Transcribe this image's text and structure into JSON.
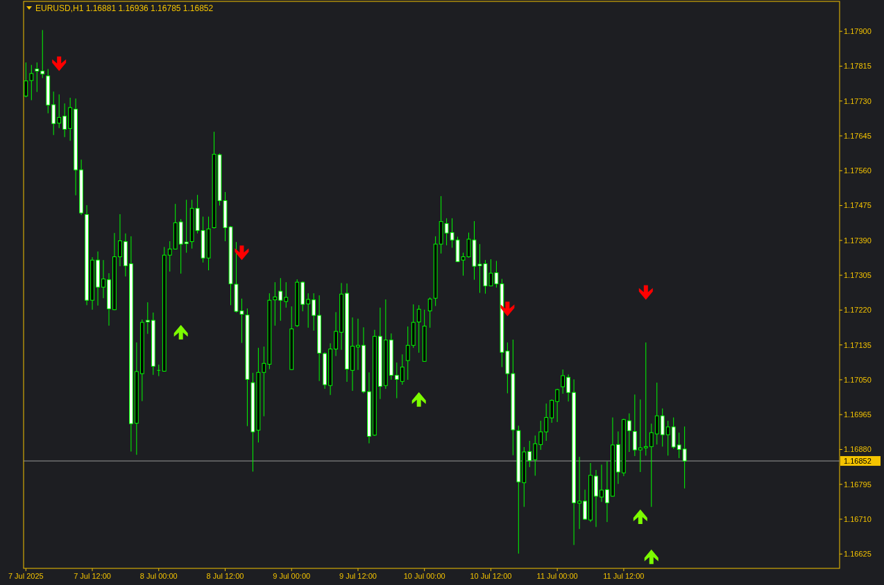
{
  "chart_data": {
    "type": "candlestick",
    "title": "EURUSD,H1 1.16881 1.16936 1.16785 1.16852",
    "x": [
      "2025-07-07T00:00",
      "2025-07-07T01:00",
      "2025-07-07T02:00",
      "2025-07-07T03:00",
      "2025-07-07T04:00",
      "2025-07-07T05:00",
      "2025-07-07T06:00",
      "2025-07-07T07:00",
      "2025-07-07T08:00",
      "2025-07-07T09:00",
      "2025-07-07T10:00",
      "2025-07-07T11:00",
      "2025-07-07T12:00",
      "2025-07-07T13:00",
      "2025-07-07T14:00",
      "2025-07-07T15:00",
      "2025-07-07T16:00",
      "2025-07-07T17:00",
      "2025-07-07T18:00",
      "2025-07-07T19:00",
      "2025-07-07T20:00",
      "2025-07-07T21:00",
      "2025-07-07T22:00",
      "2025-07-07T23:00",
      "2025-07-08T00:00",
      "2025-07-08T01:00",
      "2025-07-08T02:00",
      "2025-07-08T03:00",
      "2025-07-08T04:00",
      "2025-07-08T05:00",
      "2025-07-08T06:00",
      "2025-07-08T07:00",
      "2025-07-08T08:00",
      "2025-07-08T09:00",
      "2025-07-08T10:00",
      "2025-07-08T11:00",
      "2025-07-08T12:00",
      "2025-07-08T13:00",
      "2025-07-08T14:00",
      "2025-07-08T15:00",
      "2025-07-08T16:00",
      "2025-07-08T17:00",
      "2025-07-08T18:00",
      "2025-07-08T19:00",
      "2025-07-08T20:00",
      "2025-07-08T21:00",
      "2025-07-08T22:00",
      "2025-07-08T23:00",
      "2025-07-09T00:00",
      "2025-07-09T01:00",
      "2025-07-09T02:00",
      "2025-07-09T03:00",
      "2025-07-09T04:00",
      "2025-07-09T05:00",
      "2025-07-09T06:00",
      "2025-07-09T07:00",
      "2025-07-09T08:00",
      "2025-07-09T09:00",
      "2025-07-09T10:00",
      "2025-07-09T11:00",
      "2025-07-09T12:00",
      "2025-07-09T13:00",
      "2025-07-09T14:00",
      "2025-07-09T15:00",
      "2025-07-09T16:00",
      "2025-07-09T17:00",
      "2025-07-09T18:00",
      "2025-07-09T19:00",
      "2025-07-09T20:00",
      "2025-07-09T21:00",
      "2025-07-09T22:00",
      "2025-07-09T23:00",
      "2025-07-10T00:00",
      "2025-07-10T01:00",
      "2025-07-10T02:00",
      "2025-07-10T03:00",
      "2025-07-10T04:00",
      "2025-07-10T05:00",
      "2025-07-10T06:00",
      "2025-07-10T07:00",
      "2025-07-10T08:00",
      "2025-07-10T09:00",
      "2025-07-10T10:00",
      "2025-07-10T11:00",
      "2025-07-10T12:00",
      "2025-07-10T13:00",
      "2025-07-10T14:00",
      "2025-07-10T15:00",
      "2025-07-10T16:00",
      "2025-07-10T17:00",
      "2025-07-10T18:00",
      "2025-07-10T19:00",
      "2025-07-10T20:00",
      "2025-07-10T21:00",
      "2025-07-10T22:00",
      "2025-07-10T23:00",
      "2025-07-11T00:00",
      "2025-07-11T01:00",
      "2025-07-11T02:00",
      "2025-07-11T03:00",
      "2025-07-11T04:00",
      "2025-07-11T05:00",
      "2025-07-11T06:00",
      "2025-07-11T07:00",
      "2025-07-11T08:00",
      "2025-07-11T09:00",
      "2025-07-11T10:00",
      "2025-07-11T11:00",
      "2025-07-11T12:00",
      "2025-07-11T13:00",
      "2025-07-11T14:00",
      "2025-07-11T15:00",
      "2025-07-11T16:00",
      "2025-07-11T17:00",
      "2025-07-11T18:00",
      "2025-07-11T19:00",
      "2025-07-11T20:00",
      "2025-07-11T21:00",
      "2025-07-11T22:00",
      "2025-07-11T23:00"
    ],
    "ohlc": [
      [
        1.17742,
        1.17824,
        1.17739,
        1.17779
      ],
      [
        1.1778,
        1.17818,
        1.17732,
        1.17797
      ],
      [
        1.17808,
        1.17824,
        1.17752,
        1.17803
      ],
      [
        1.17803,
        1.17903,
        1.17786,
        1.17796
      ],
      [
        1.17791,
        1.17808,
        1.177,
        1.1772
      ],
      [
        1.17721,
        1.17753,
        1.17647,
        1.17675
      ],
      [
        1.17676,
        1.17746,
        1.17664,
        1.1769
      ],
      [
        1.17693,
        1.17724,
        1.17642,
        1.17661
      ],
      [
        1.17663,
        1.17738,
        1.17633,
        1.17714
      ],
      [
        1.1771,
        1.17736,
        1.175,
        1.17562
      ],
      [
        1.17562,
        1.17587,
        1.17452,
        1.17457
      ],
      [
        1.17453,
        1.17476,
        1.17232,
        1.17244
      ],
      [
        1.17244,
        1.17349,
        1.17221,
        1.17342
      ],
      [
        1.17342,
        1.17363,
        1.17231,
        1.17276
      ],
      [
        1.17276,
        1.17342,
        1.17249,
        1.17296
      ],
      [
        1.17294,
        1.1731,
        1.17182,
        1.17223
      ],
      [
        1.17221,
        1.17408,
        1.1722,
        1.1735
      ],
      [
        1.1735,
        1.17454,
        1.17327,
        1.17389
      ],
      [
        1.17387,
        1.17407,
        1.17302,
        1.17328
      ],
      [
        1.17333,
        1.174,
        1.16875,
        1.16943
      ],
      [
        1.16944,
        1.17141,
        1.16867,
        1.1707
      ],
      [
        1.17065,
        1.17197,
        1.16998,
        1.1719
      ],
      [
        1.17195,
        1.17239,
        1.17162,
        1.17191
      ],
      [
        1.17195,
        1.17214,
        1.17062,
        1.17083
      ],
      [
        1.17073,
        1.17087,
        1.17059,
        1.17073
      ],
      [
        1.17071,
        1.17374,
        1.1707,
        1.17354
      ],
      [
        1.17354,
        1.17388,
        1.17314,
        1.17369
      ],
      [
        1.17369,
        1.17479,
        1.17368,
        1.17433
      ],
      [
        1.17435,
        1.17442,
        1.17309,
        1.17381
      ],
      [
        1.17386,
        1.17489,
        1.1736,
        1.17382
      ],
      [
        1.17387,
        1.17489,
        1.1737,
        1.17468
      ],
      [
        1.17468,
        1.17501,
        1.17407,
        1.17414
      ],
      [
        1.17414,
        1.17448,
        1.17336,
        1.17347
      ],
      [
        1.17347,
        1.17448,
        1.17317,
        1.17418
      ],
      [
        1.17421,
        1.17655,
        1.17419,
        1.176
      ],
      [
        1.17599,
        1.17602,
        1.17475,
        1.17487
      ],
      [
        1.17487,
        1.17508,
        1.17388,
        1.17421
      ],
      [
        1.17423,
        1.17425,
        1.17232,
        1.17284
      ],
      [
        1.17283,
        1.17386,
        1.17214,
        1.17217
      ],
      [
        1.17218,
        1.17248,
        1.1714,
        1.1721
      ],
      [
        1.17208,
        1.17224,
        1.16937,
        1.17051
      ],
      [
        1.17043,
        1.17067,
        1.16826,
        1.16923
      ],
      [
        1.16927,
        1.17128,
        1.16897,
        1.17068
      ],
      [
        1.17068,
        1.17131,
        1.16961,
        1.1709
      ],
      [
        1.17088,
        1.17261,
        1.17076,
        1.17244
      ],
      [
        1.17245,
        1.17288,
        1.17182,
        1.17252
      ],
      [
        1.17266,
        1.17298,
        1.17194,
        1.17244
      ],
      [
        1.17241,
        1.17288,
        1.17226,
        1.17251
      ],
      [
        1.17075,
        1.17229,
        1.17074,
        1.17174
      ],
      [
        1.17182,
        1.17295,
        1.17179,
        1.17288
      ],
      [
        1.17288,
        1.1729,
        1.17217,
        1.17234
      ],
      [
        1.17235,
        1.17261,
        1.17177,
        1.17246
      ],
      [
        1.17245,
        1.17261,
        1.1717,
        1.17207
      ],
      [
        1.17207,
        1.17256,
        1.17047,
        1.17115
      ],
      [
        1.17114,
        1.17117,
        1.17028,
        1.17038
      ],
      [
        1.17036,
        1.17139,
        1.17013,
        1.17125
      ],
      [
        1.17125,
        1.17215,
        1.17108,
        1.17168
      ],
      [
        1.17166,
        1.17286,
        1.17123,
        1.17259
      ],
      [
        1.17261,
        1.17285,
        1.17045,
        1.17076
      ],
      [
        1.17073,
        1.17202,
        1.17023,
        1.17132
      ],
      [
        1.1713,
        1.17199,
        1.17074,
        1.17134
      ],
      [
        1.17134,
        1.17178,
        1.17017,
        1.17021
      ],
      [
        1.17021,
        1.17068,
        1.16895,
        1.16912
      ],
      [
        1.16915,
        1.17172,
        1.16913,
        1.17156
      ],
      [
        1.17156,
        1.17226,
        1.17003,
        1.17034
      ],
      [
        1.17036,
        1.17246,
        1.17028,
        1.17147
      ],
      [
        1.17147,
        1.17163,
        1.1705,
        1.17061
      ],
      [
        1.17061,
        1.17092,
        1.17005,
        1.17051
      ],
      [
        1.17046,
        1.17112,
        1.17038,
        1.17081
      ],
      [
        1.17097,
        1.1718,
        1.1705,
        1.17134
      ],
      [
        1.17134,
        1.17234,
        1.17128,
        1.1719
      ],
      [
        1.17191,
        1.17232,
        1.17116,
        1.17222
      ],
      [
        1.17095,
        1.17221,
        1.17094,
        1.17181
      ],
      [
        1.17218,
        1.17251,
        1.17177,
        1.17247
      ],
      [
        1.17249,
        1.174,
        1.1723,
        1.17381
      ],
      [
        1.17381,
        1.17498,
        1.17358,
        1.17436
      ],
      [
        1.17431,
        1.17444,
        1.17378,
        1.17408
      ],
      [
        1.17409,
        1.17444,
        1.17372,
        1.17391
      ],
      [
        1.17391,
        1.17399,
        1.17337,
        1.17338
      ],
      [
        1.17342,
        1.1736,
        1.17304,
        1.1735
      ],
      [
        1.1735,
        1.17409,
        1.17348,
        1.17393
      ],
      [
        1.17391,
        1.17437,
        1.17294,
        1.17327
      ],
      [
        1.17332,
        1.17381,
        1.17262,
        1.17328
      ],
      [
        1.17333,
        1.17342,
        1.1726,
        1.17279
      ],
      [
        1.17279,
        1.17344,
        1.17278,
        1.1731
      ],
      [
        1.17311,
        1.1734,
        1.17275,
        1.17284
      ],
      [
        1.17284,
        1.17296,
        1.17081,
        1.17117
      ],
      [
        1.1712,
        1.17141,
        1.17017,
        1.17065
      ],
      [
        1.17065,
        1.17148,
        1.16866,
        1.16928
      ],
      [
        1.16926,
        1.16938,
        1.16626,
        1.16801
      ],
      [
        1.16799,
        1.16886,
        1.1674,
        1.16874
      ],
      [
        1.16875,
        1.16901,
        1.16837,
        1.16853
      ],
      [
        1.16855,
        1.16914,
        1.16816,
        1.16894
      ],
      [
        1.16892,
        1.1695,
        1.16879,
        1.16923
      ],
      [
        1.16923,
        1.16992,
        1.16901,
        1.16958
      ],
      [
        1.16957,
        1.17002,
        1.16945,
        1.17
      ],
      [
        1.16997,
        1.17028,
        1.16947,
        1.17026
      ],
      [
        1.17033,
        1.17075,
        1.17016,
        1.1706
      ],
      [
        1.17056,
        1.17063,
        1.16997,
        1.17019
      ],
      [
        1.17019,
        1.17051,
        1.16647,
        1.1675
      ],
      [
        1.16749,
        1.16862,
        1.16686,
        1.16754
      ],
      [
        1.16754,
        1.16782,
        1.16708,
        1.1671
      ],
      [
        1.16708,
        1.16847,
        1.16703,
        1.16817
      ],
      [
        1.16815,
        1.1683,
        1.16691,
        1.16766
      ],
      [
        1.16764,
        1.16843,
        1.16752,
        1.16781
      ],
      [
        1.16782,
        1.16851,
        1.16703,
        1.1675
      ],
      [
        1.16766,
        1.16958,
        1.16765,
        1.16891
      ],
      [
        1.16892,
        1.16924,
        1.16796,
        1.16825
      ],
      [
        1.16823,
        1.16955,
        1.16815,
        1.16953
      ],
      [
        1.1695,
        1.16968,
        1.16874,
        1.16926
      ],
      [
        1.16924,
        1.17014,
        1.16864,
        1.16879
      ],
      [
        1.16879,
        1.17002,
        1.16825,
        1.16884
      ],
      [
        1.16884,
        1.17141,
        1.16865,
        1.16887
      ],
      [
        1.16887,
        1.16943,
        1.1674,
        1.16921
      ],
      [
        1.16918,
        1.17043,
        1.16892,
        1.16962
      ],
      [
        1.16962,
        1.1698,
        1.16887,
        1.16916
      ],
      [
        1.16916,
        1.1695,
        1.16865,
        1.16935
      ],
      [
        1.16935,
        1.16958,
        1.16882,
        1.16886
      ],
      [
        1.16891,
        1.16921,
        1.16859,
        1.1688
      ],
      [
        1.16881,
        1.16936,
        1.16785,
        1.16852
      ]
    ],
    "series": [
      {
        "type": "scatter",
        "color": "#ff0000",
        "x": [
          "2025-07-07T06:00",
          "2025-07-08T15:00",
          "2025-07-10T15:00",
          "2025-07-11T16:00"
        ],
        "values": [
          1.1782,
          1.17359,
          1.17222,
          1.17262
        ]
      },
      {
        "type": "scatter",
        "color": "#7cfc00",
        "x": [
          "2025-07-08T04:00",
          "2025-07-09T23:00",
          "2025-07-11T15:00",
          "2025-07-11T17:00"
        ],
        "values": [
          1.17167,
          1.17003,
          1.16717,
          1.16619
        ]
      }
    ],
    "xlim": [
      "2025-07-06T23:35",
      "2025-07-13T03:00"
    ],
    "xticks": [
      {
        "value": "2025-07-07T00:00",
        "label": "7 Jul 2025"
      },
      {
        "value": "2025-07-07T12:00",
        "label": "7 Jul 12:00"
      },
      {
        "value": "2025-07-08T00:00",
        "label": "8 Jul 00:00"
      },
      {
        "value": "2025-07-08T12:00",
        "label": "8 Jul 12:00"
      },
      {
        "value": "2025-07-09T00:00",
        "label": "9 Jul 00:00"
      },
      {
        "value": "2025-07-09T12:00",
        "label": "9 Jul 12:00"
      },
      {
        "value": "2025-07-10T00:00",
        "label": "10 Jul 00:00"
      },
      {
        "value": "2025-07-10T12:00",
        "label": "10 Jul 12:00"
      },
      {
        "value": "2025-07-11T00:00",
        "label": "11 Jul 00:00"
      },
      {
        "value": "2025-07-11T12:00",
        "label": "11 Jul 12:00"
      }
    ],
    "ylim": [
      1.1659,
      1.17973
    ],
    "yticks": [
      {
        "value": 1.16625,
        "label": "1.16625"
      },
      {
        "value": 1.1671,
        "label": "1.16710"
      },
      {
        "value": 1.16795,
        "label": "1.16795"
      },
      {
        "value": 1.1688,
        "label": "1.16880"
      },
      {
        "value": 1.16965,
        "label": "1.16965"
      },
      {
        "value": 1.1705,
        "label": "1.17050"
      },
      {
        "value": 1.17135,
        "label": "1.17135"
      },
      {
        "value": 1.1722,
        "label": "1.17220"
      },
      {
        "value": 1.17305,
        "label": "1.17305"
      },
      {
        "value": 1.1739,
        "label": "1.17390"
      },
      {
        "value": 1.17475,
        "label": "1.17475"
      },
      {
        "value": 1.1756,
        "label": "1.17560"
      },
      {
        "value": 1.17645,
        "label": "1.17645"
      },
      {
        "value": 1.1773,
        "label": "1.17730"
      },
      {
        "value": 1.17815,
        "label": "1.17815"
      },
      {
        "value": 1.179,
        "label": "1.17900"
      }
    ],
    "ref_lines": [
      {
        "axis": "y",
        "value": 1.16852,
        "label": "1.16852",
        "color": "#9a9a9a"
      }
    ]
  }
}
